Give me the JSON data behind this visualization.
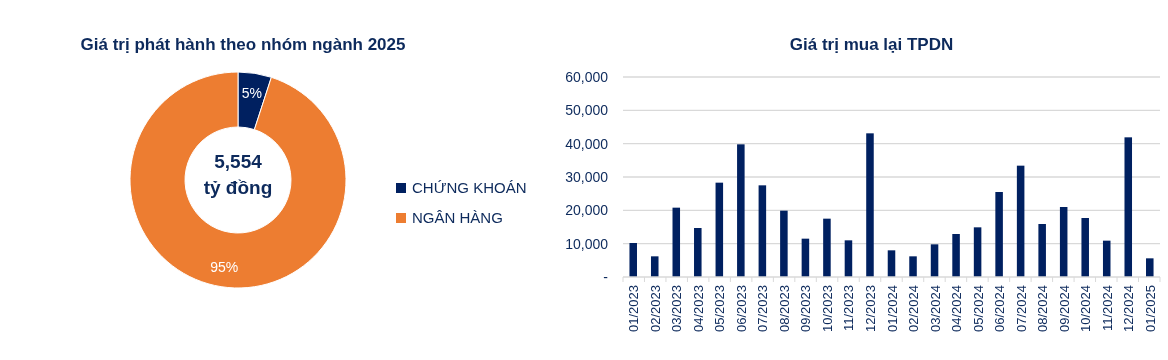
{
  "chart_data": [
    {
      "type": "donut",
      "title": "Giá trị phát hành theo nhóm ngành 2025",
      "categories": [
        "CHỨNG KHOÁN",
        "NGÂN HÀNG"
      ],
      "values": [
        5,
        95
      ],
      "colors": [
        "#002060",
        "#ed7d31"
      ],
      "value_labels": [
        "5%",
        "95%"
      ],
      "annotations": [
        "5,554",
        "tỷ đồng"
      ],
      "legend": "right"
    },
    {
      "type": "bar",
      "title": "Giá trị mua lại TPDN",
      "categories": [
        "01/2023",
        "02/2023",
        "03/2023",
        "04/2023",
        "05/2023",
        "06/2023",
        "07/2023",
        "08/2023",
        "09/2023",
        "10/2023",
        "11/2023",
        "12/2023",
        "01/2024",
        "02/2024",
        "03/2024",
        "04/2024",
        "05/2024",
        "06/2024",
        "07/2024",
        "08/2024",
        "09/2024",
        "10/2024",
        "11/2024",
        "12/2024",
        "01/2025"
      ],
      "series": [
        {
          "color": "#002060",
          "values": [
            10200,
            6200,
            20800,
            14700,
            28300,
            39800,
            27500,
            19900,
            11500,
            17500,
            11000,
            43100,
            8000,
            6200,
            9800,
            12900,
            14900,
            25500,
            33400,
            15900,
            21000,
            17700,
            10900,
            41900,
            5600
          ]
        }
      ],
      "ylim": [
        0,
        60000
      ],
      "yticks": [
        {
          "value": 0,
          "label": "-"
        },
        {
          "value": 10000,
          "label": "10,000"
        },
        {
          "value": 20000,
          "label": "20,000"
        },
        {
          "value": 30000,
          "label": "30,000"
        },
        {
          "value": 40000,
          "label": "40,000"
        },
        {
          "value": 50000,
          "label": "50,000"
        },
        {
          "value": 60000,
          "label": "60,000"
        }
      ],
      "grid": "y"
    }
  ]
}
